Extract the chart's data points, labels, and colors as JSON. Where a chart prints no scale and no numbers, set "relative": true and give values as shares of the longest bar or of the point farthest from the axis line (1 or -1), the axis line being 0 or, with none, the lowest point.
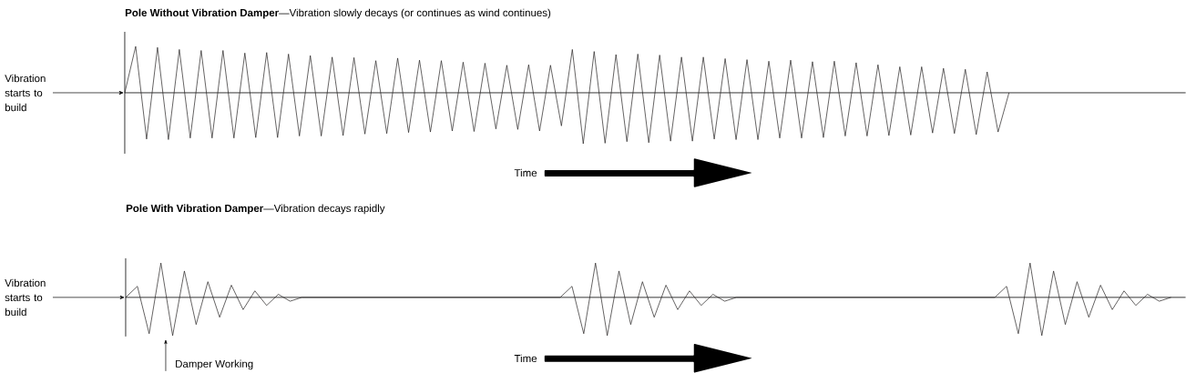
{
  "chart_data": [
    {
      "type": "line",
      "title": "**Pole Without Vibration Damper**—Vibration slowly decays (or continues as wind continues)",
      "xlabel": "Time",
      "ylabel": "Vibration starts to build",
      "relative": true,
      "categories": [
        null,
        null,
        null,
        null,
        null,
        null,
        null,
        null,
        null,
        null,
        null,
        null,
        null,
        null,
        null,
        null,
        null,
        null,
        null,
        null,
        null,
        null,
        null,
        null,
        null,
        null,
        null,
        null,
        null,
        null,
        null,
        null,
        null,
        null,
        null,
        null,
        null,
        null,
        null,
        null,
        null,
        null,
        null,
        null,
        null,
        null,
        null,
        null,
        null,
        null,
        null,
        null,
        null,
        null,
        null,
        null,
        null,
        null,
        null,
        null,
        null,
        null,
        null,
        null,
        null,
        null,
        null,
        null,
        null,
        null,
        null,
        null,
        null,
        null,
        null,
        null,
        null,
        null,
        null,
        null,
        null,
        null
      ],
      "series": [
        {
          "color": "#231f20",
          "values": [
            0,
            0.91,
            -0.91,
            0.89,
            -0.92,
            0.85,
            -0.89,
            0.83,
            -0.89,
            0.83,
            -0.89,
            0.78,
            -0.88,
            0.79,
            -0.88,
            0.76,
            -0.85,
            0.73,
            -0.85,
            0.7,
            -0.84,
            0.69,
            -0.81,
            0.63,
            -0.8,
            0.68,
            -0.78,
            0.64,
            -0.77,
            0.63,
            -0.75,
            0.6,
            -0.76,
            0.58,
            -0.71,
            0.54,
            -0.72,
            0.55,
            -0.75,
            0.54,
            -0.65,
            0.85,
            -1,
            0.81,
            -0.99,
            0.75,
            -0.96,
            0.76,
            -0.98,
            0.74,
            -0.95,
            0.7,
            -0.95,
            0.7,
            -0.91,
            0.67,
            -0.92,
            0.65,
            -0.92,
            0.62,
            -0.89,
            0.64,
            -0.89,
            0.61,
            -0.88,
            0.62,
            -0.85,
            0.59,
            -0.85,
            0.55,
            -0.84,
            0.51,
            -0.83,
            0.51,
            -0.79,
            0.48,
            -0.8,
            0.46,
            -0.82,
            0.41,
            -0.77,
            0
          ]
        }
      ]
    },
    {
      "type": "line",
      "title": "**Pole With Vibration Damper**—Vibration decays rapidly",
      "xlabel": "Time",
      "ylabel": "Vibration starts to build",
      "relative": true,
      "annotations": [
        "Damper Working"
      ],
      "categories": [
        null,
        null,
        null,
        null,
        null,
        null,
        null,
        null,
        null,
        null,
        null,
        null,
        null,
        null,
        null,
        null,
        null,
        null,
        null,
        null,
        null,
        null,
        null,
        null,
        null,
        null,
        null,
        null,
        null,
        null,
        null,
        null,
        null,
        null,
        null,
        null,
        null,
        null,
        null,
        null,
        null,
        null,
        null,
        null,
        null,
        null,
        null,
        null,
        null,
        null,
        null,
        null,
        null,
        null,
        null,
        null,
        null,
        null,
        null,
        null,
        null,
        null,
        null,
        null,
        null,
        null,
        null,
        null,
        null,
        null,
        null,
        null,
        null,
        null,
        null,
        null,
        null,
        null,
        null,
        null,
        null,
        null,
        null,
        null,
        null,
        null,
        null,
        null,
        null,
        null
      ],
      "series": [
        {
          "color": "#231f20",
          "values": [
            0,
            0.29,
            -0.95,
            0.9,
            -1,
            0.69,
            -0.71,
            0.41,
            -0.52,
            0.32,
            -0.32,
            0.17,
            -0.21,
            0.08,
            -0.1,
            0,
            0,
            0,
            0,
            0,
            0,
            0,
            0,
            0,
            0,
            0,
            0,
            0,
            0,
            0,
            0,
            0,
            0,
            0,
            0,
            0,
            0,
            0,
            0.29,
            -0.95,
            0.9,
            -1,
            0.69,
            -0.71,
            0.41,
            -0.52,
            0.32,
            -0.32,
            0.17,
            -0.21,
            0.08,
            -0.1,
            0,
            0,
            0,
            0,
            0,
            0,
            0,
            0,
            0,
            0,
            0,
            0,
            0,
            0,
            0,
            0,
            0,
            0,
            0,
            0,
            0,
            0,
            0,
            0.29,
            -0.95,
            0.9,
            -1,
            0.69,
            -0.71,
            0.41,
            -0.52,
            0.32,
            -0.32,
            0.17,
            -0.21,
            0.08,
            -0.1,
            0
          ]
        }
      ]
    }
  ]
}
